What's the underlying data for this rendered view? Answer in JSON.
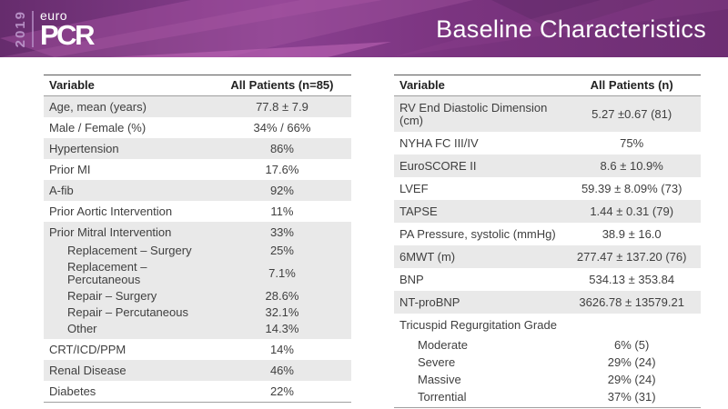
{
  "header": {
    "year": "2019",
    "logo": {
      "euro": "euro",
      "pcr": "PCR"
    },
    "title": "Baseline Characteristics"
  },
  "colors": {
    "band_gradient": [
      "#662C6D",
      "#8A4090",
      "#7B3480",
      "#6D2E72"
    ],
    "facet_magenta": "#A653A1",
    "facet_magenta_2": "#B05FA8",
    "bright_sliver": "#C168B8",
    "facet_dark": "#4F2358",
    "logo_year": "#B78FC5",
    "title_text": "#FFFFFF",
    "row_shade": "#E9E9E9",
    "table_top_border": "#595959",
    "table_line": "#9F9F9F",
    "text_dark": "#3F3F3F",
    "header_text": "#222222"
  },
  "tables": {
    "left": {
      "headers": [
        "Variable",
        "All Patients (n=85)"
      ],
      "rows": [
        {
          "label": "Age, mean (years)",
          "value": "77.8 ± 7.9",
          "shaded": true
        },
        {
          "label": "Male / Female (%)",
          "value": "34% / 66%",
          "shaded": false
        },
        {
          "label": "Hypertension",
          "value": "86%",
          "shaded": true
        },
        {
          "label": "Prior MI",
          "value": "17.6%",
          "shaded": false
        },
        {
          "label": "A-fib",
          "value": "92%",
          "shaded": true
        },
        {
          "label": "Prior Aortic Intervention",
          "value": "11%",
          "shaded": false
        },
        {
          "label": "Prior Mitral Intervention",
          "value": "33%",
          "shaded": true,
          "subrows": [
            {
              "label": "Replacement – Surgery",
              "value": "25%"
            },
            {
              "label": "Replacement – Percutaneous",
              "value": "7.1%"
            },
            {
              "label": "Repair – Surgery",
              "value": "28.6%"
            },
            {
              "label": "Repair – Percutaneous",
              "value": "32.1%"
            },
            {
              "label": "Other",
              "value": "14.3%"
            }
          ]
        },
        {
          "label": "CRT/ICD/PPM",
          "value": "14%",
          "shaded": false
        },
        {
          "label": "Renal Disease",
          "value": "46%",
          "shaded": true
        },
        {
          "label": "Diabetes",
          "value": "22%",
          "shaded": false
        }
      ]
    },
    "right": {
      "headers": [
        "Variable",
        "All Patients (n)"
      ],
      "rows": [
        {
          "label": "RV End Diastolic Dimension (cm)",
          "value": "5.27 ±0.67 (81)",
          "shaded": true
        },
        {
          "label": "NYHA FC III/IV",
          "value": "75%",
          "shaded": false
        },
        {
          "label": "EuroSCORE II",
          "value": "8.6 ± 10.9%",
          "shaded": true
        },
        {
          "label": "LVEF",
          "value": "59.39 ± 8.09% (73)",
          "shaded": false
        },
        {
          "label": "TAPSE",
          "value": "1.44 ± 0.31 (79)",
          "shaded": true
        },
        {
          "label": "PA Pressure, systolic (mmHg)",
          "value": "38.9 ± 16.0",
          "shaded": false
        },
        {
          "label": "6MWT (m)",
          "value": "277.47 ± 137.20 (76)",
          "shaded": true
        },
        {
          "label": "BNP",
          "value": "534.13 ± 353.84",
          "shaded": false
        },
        {
          "label": "NT-proBNP",
          "value": "3626.78 ± 13579.21",
          "shaded": true
        },
        {
          "label": "Tricuspid Regurgitation Grade",
          "value": "",
          "shaded": false,
          "subrows": [
            {
              "label": "Moderate",
              "value": "6% (5)"
            },
            {
              "label": "Severe",
              "value": "29% (24)"
            },
            {
              "label": "Massive",
              "value": "29% (24)"
            },
            {
              "label": "Torrential",
              "value": "37% (31)"
            }
          ]
        }
      ]
    }
  }
}
